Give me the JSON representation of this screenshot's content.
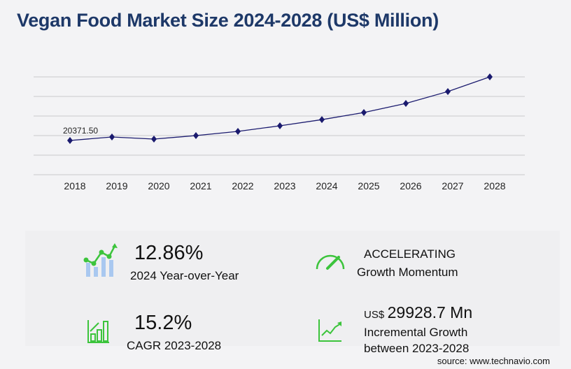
{
  "title": "Vegan Food Market Size 2024-2028 (US$ Million)",
  "chart_data": {
    "type": "line",
    "title": "Vegan Food Market Size 2024-2028 (US$ Million)",
    "categories": [
      "2018",
      "2019",
      "2020",
      "2021",
      "2022",
      "2023",
      "2024",
      "2025",
      "2026",
      "2027",
      "2028"
    ],
    "series": [
      {
        "values": [
          20371.5,
          22510,
          21230,
          23365,
          25930,
          29350,
          33125,
          37475,
          43035,
          50305,
          59280
        ]
      }
    ],
    "data_labels": [
      {
        "category": "2018",
        "text": "20371.50"
      }
    ],
    "ylim": [
      -580,
      59280
    ],
    "grid": true,
    "line_color": "#1a1a6e",
    "xlabel": "",
    "ylabel": ""
  },
  "stats": {
    "yoy_value": "12.86%",
    "yoy_label": "2024 Year-over-Year",
    "momentum_value": "ACCELERATING",
    "momentum_label": "Growth Momentum",
    "cagr_value": "15.2%",
    "cagr_label": "CAGR 2023-2028",
    "incr_prefix": "US$",
    "incr_value": "29928.7 Mn",
    "incr_label_1": "Incremental Growth",
    "incr_label_2": "between 2023-2028"
  },
  "source": "source: www.technavio.com",
  "colors": {
    "accent_green": "#3cc43c",
    "title": "#1d3868",
    "bar_blue": "#a9c8f0"
  }
}
